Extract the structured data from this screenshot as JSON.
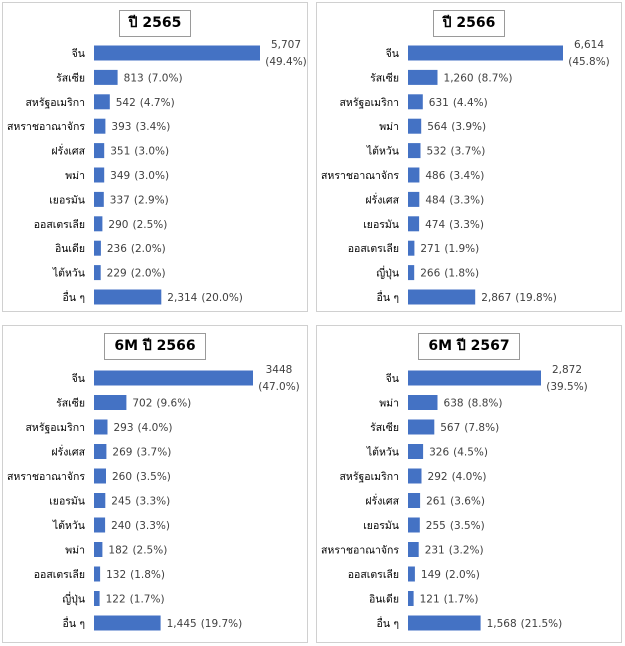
{
  "chart_data": [
    {
      "type": "bar",
      "title": "ปี 2565",
      "categories": [
        "จีน",
        "รัสเซีย",
        "สหรัฐอเมริกา",
        "สหราชอาณาจักร",
        "ฝรั่งเศส",
        "พม่า",
        "เยอรมัน",
        "ออสเตรเลีย",
        "อินเดีย",
        "ไต้หวัน",
        "อื่น ๆ"
      ],
      "values": [
        5707,
        813,
        542,
        393,
        351,
        349,
        337,
        290,
        236,
        229,
        2314
      ],
      "value_labels": [
        "5,707",
        "813",
        "542",
        "393",
        "351",
        "349",
        "337",
        "290",
        "236",
        "229",
        "2,314"
      ],
      "percent_labels": [
        "(49.4%)",
        "(7.0%)",
        "(4.7%)",
        "(3.4%)",
        "(3.0%)",
        "(3.0%)",
        "(2.9%)",
        "(2.5%)",
        "(2.0%)",
        "(2.0%)",
        "(20.0%)"
      ],
      "orientation": "horizontal",
      "color": "#4472c4",
      "grid": false
    },
    {
      "type": "bar",
      "title": "ปี 2566",
      "categories": [
        "จีน",
        "รัสเซีย",
        "สหรัฐอเมริกา",
        "พม่า",
        "ไต้หวัน",
        "สหราชอาณาจักร",
        "ฝรั่งเศส",
        "เยอรมัน",
        "ออสเตรเลีย",
        "ญี่ปุ่น",
        "อื่น ๆ"
      ],
      "values": [
        6614,
        1260,
        631,
        564,
        532,
        486,
        484,
        474,
        271,
        266,
        2867
      ],
      "value_labels": [
        "6,614",
        "1,260",
        "631",
        "564",
        "532",
        "486",
        "484",
        "474",
        "271",
        "266",
        "2,867"
      ],
      "percent_labels": [
        "(45.8%)",
        "(8.7%)",
        "(4.4%)",
        "(3.9%)",
        "(3.7%)",
        "(3.4%)",
        "(3.3%)",
        "(3.3%)",
        "(1.9%)",
        "(1.8%)",
        "(19.8%)"
      ],
      "orientation": "horizontal",
      "color": "#4472c4",
      "grid": false
    },
    {
      "type": "bar",
      "title": "6M ปี 2566",
      "categories": [
        "จีน",
        "รัสเซีย",
        "สหรัฐอเมริกา",
        "ฝรั่งเศส",
        "สหราชอาณาจักร",
        "เยอรมัน",
        "ไต้หวัน",
        "พม่า",
        "ออสเตรเลีย",
        "ญี่ปุ่น",
        "อื่น ๆ"
      ],
      "values": [
        3448,
        702,
        293,
        269,
        260,
        245,
        240,
        182,
        132,
        122,
        1445
      ],
      "value_labels": [
        "3448",
        "702",
        "293",
        "269",
        "260",
        "245",
        "240",
        "182",
        "132",
        "122",
        "1,445"
      ],
      "percent_labels": [
        "(47.0%)",
        "(9.6%)",
        "(4.0%)",
        "(3.7%)",
        "(3.5%)",
        "(3.3%)",
        "(3.3%)",
        "(2.5%)",
        "(1.8%)",
        "(1.7%)",
        "(19.7%)"
      ],
      "orientation": "horizontal",
      "color": "#4472c4",
      "grid": false
    },
    {
      "type": "bar",
      "title": "6M ปี 2567",
      "categories": [
        "จีน",
        "พม่า",
        "รัสเซีย",
        "ไต้หวัน",
        "สหรัฐอเมริกา",
        "ฝรั่งเศส",
        "เยอรมัน",
        "สหราชอาณาจักร",
        "ออสเตรเลีย",
        "อินเดีย",
        "อื่น ๆ"
      ],
      "values": [
        2872,
        638,
        567,
        326,
        292,
        261,
        255,
        231,
        149,
        121,
        1568
      ],
      "value_labels": [
        "2,872",
        "638",
        "567",
        "326",
        "292",
        "261",
        "255",
        "231",
        "149",
        "121",
        "1,568"
      ],
      "percent_labels": [
        "(39.5%)",
        "(8.8%)",
        "(7.8%)",
        "(4.5%)",
        "(4.0%)",
        "(3.6%)",
        "(3.5%)",
        "(3.2%)",
        "(2.0%)",
        "(1.7%)",
        "(21.5%)"
      ],
      "orientation": "horizontal",
      "color": "#4472c4",
      "grid": false
    }
  ]
}
